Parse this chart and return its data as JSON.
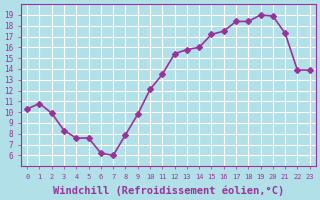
{
  "x": [
    0,
    1,
    2,
    3,
    4,
    5,
    6,
    7,
    8,
    9,
    10,
    11,
    12,
    13,
    14,
    15,
    16,
    17,
    18,
    19,
    20,
    21,
    22,
    23
  ],
  "y": [
    10.3,
    10.8,
    9.9,
    8.3,
    7.6,
    7.6,
    6.2,
    6.0,
    7.9,
    9.8,
    12.1,
    13.5,
    15.4,
    15.8,
    16.0,
    17.2,
    17.5,
    18.4,
    18.4,
    19.0,
    18.9,
    17.3,
    13.9,
    13.9
  ],
  "line_color": "#993399",
  "marker": "D",
  "markersize": 3,
  "linewidth": 1.2,
  "xlabel": "Windchill (Refroidissement éolien,°C)",
  "xlabel_fontsize": 7.5,
  "background_color": "#b2e0e8",
  "grid_color": "#ffffff",
  "tick_color": "#993399",
  "label_color": "#993399",
  "ylim": [
    5,
    20
  ],
  "xlim": [
    -0.5,
    23.5
  ],
  "yticks": [
    6,
    7,
    8,
    9,
    10,
    11,
    12,
    13,
    14,
    15,
    16,
    17,
    18,
    19
  ],
  "xticks": [
    0,
    1,
    2,
    3,
    4,
    5,
    6,
    7,
    8,
    9,
    10,
    11,
    12,
    13,
    14,
    15,
    16,
    17,
    18,
    19,
    20,
    21,
    22,
    23
  ]
}
